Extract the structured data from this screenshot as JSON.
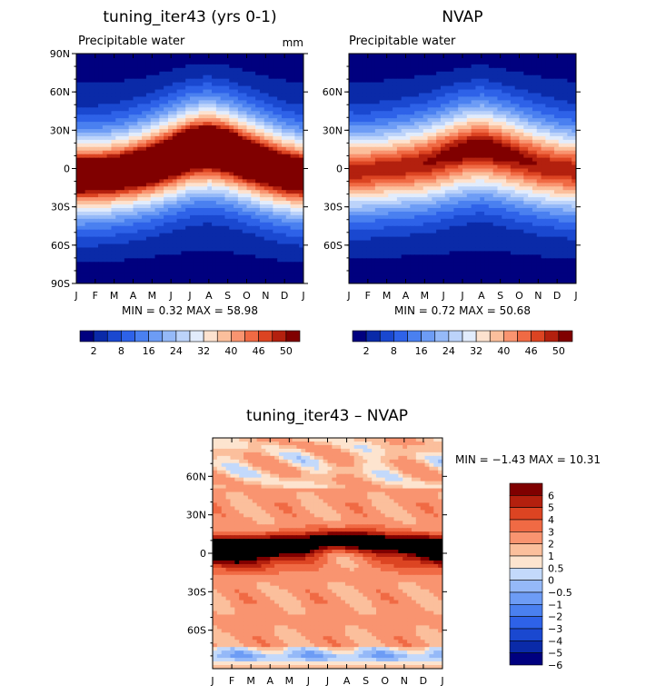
{
  "chart_data": [
    {
      "type": "heatmap",
      "title": "tuning_iter43 (yrs 0-1)",
      "subtitle_left": "Precipitable water",
      "units": "mm",
      "months": [
        "J",
        "F",
        "M",
        "A",
        "M",
        "J",
        "J",
        "A",
        "S",
        "O",
        "N",
        "D",
        "J"
      ],
      "lat_ticks": [
        "90N",
        "60N",
        "30N",
        "0",
        "30S",
        "60S",
        "90S"
      ],
      "lat_values": [
        90,
        60,
        30,
        0,
        -30,
        -60,
        -90
      ],
      "stats": "MIN =     0.32  MAX =    58.98",
      "itcz_lat_by_month": [
        -6,
        -6,
        -4,
        -1,
        3,
        8,
        13,
        15,
        12,
        7,
        2,
        -3,
        -6
      ],
      "itcz_peak": 60,
      "levels": [
        2,
        5,
        8,
        12,
        16,
        20,
        24,
        28,
        32,
        36,
        40,
        43,
        46,
        48,
        50
      ],
      "colorbar_labels": [
        "2",
        "8",
        "16",
        "24",
        "32",
        "40",
        "46",
        "50"
      ]
    },
    {
      "type": "heatmap",
      "title": "NVAP",
      "subtitle_left": "Precipitable water",
      "units": "",
      "months": [
        "J",
        "F",
        "M",
        "A",
        "M",
        "J",
        "J",
        "A",
        "S",
        "O",
        "N",
        "D",
        "J"
      ],
      "lat_ticks": [
        "60N",
        "30N",
        "0",
        "30S",
        "60S"
      ],
      "lat_values": [
        60,
        30,
        0,
        -30,
        -60
      ],
      "stats": "MIN =     0.72  MAX =    50.68",
      "itcz_lat_by_month": [
        -2,
        -2,
        0,
        2,
        4,
        8,
        12,
        14,
        11,
        7,
        3,
        0,
        -2
      ],
      "itcz_peak": 50,
      "levels": [
        2,
        5,
        8,
        12,
        16,
        20,
        24,
        28,
        32,
        36,
        40,
        43,
        46,
        48,
        50
      ],
      "colorbar_labels": [
        "2",
        "8",
        "16",
        "24",
        "32",
        "40",
        "46",
        "50"
      ]
    },
    {
      "type": "heatmap",
      "title": "tuning_iter43 – NVAP",
      "months": [
        "J",
        "F",
        "M",
        "A",
        "M",
        "J",
        "J",
        "A",
        "S",
        "O",
        "N",
        "D",
        "J"
      ],
      "lat_ticks": [
        "60N",
        "30N",
        "0",
        "30S",
        "60S"
      ],
      "lat_values": [
        60,
        30,
        0,
        -30,
        -60
      ],
      "stats": "MIN =   −1.43  MAX =    10.31",
      "levels": [
        -6,
        -5,
        -4,
        -3,
        -2,
        -1,
        -0.5,
        0,
        0.5,
        1,
        2,
        3,
        4,
        5,
        6
      ],
      "colorbar_labels": [
        "6",
        "5",
        "4",
        "3",
        "2",
        "1",
        "0.5",
        "0",
        "−0.5",
        "−1",
        "−2",
        "−3",
        "−4",
        "−5",
        "−6"
      ]
    }
  ],
  "colors": {
    "seq": [
      "#00007f",
      "#0a2aa8",
      "#1a48d0",
      "#2e62e8",
      "#4a80f0",
      "#6d9cf5",
      "#95b9f8",
      "#bcd3fa",
      "#e2ecfc",
      "#fde2cf",
      "#fbbf9c",
      "#f99470",
      "#f06a44",
      "#dc4422",
      "#b3200e",
      "#800000"
    ],
    "div": [
      "#00007f",
      "#0a2aa8",
      "#1a48d0",
      "#2e62e8",
      "#4a80f0",
      "#6d9cf5",
      "#95b9f8",
      "#c3d9fb",
      "#fde4cf",
      "#fbbf9c",
      "#f99470",
      "#f06a44",
      "#dc4422",
      "#b3200e",
      "#7f0000"
    ]
  }
}
